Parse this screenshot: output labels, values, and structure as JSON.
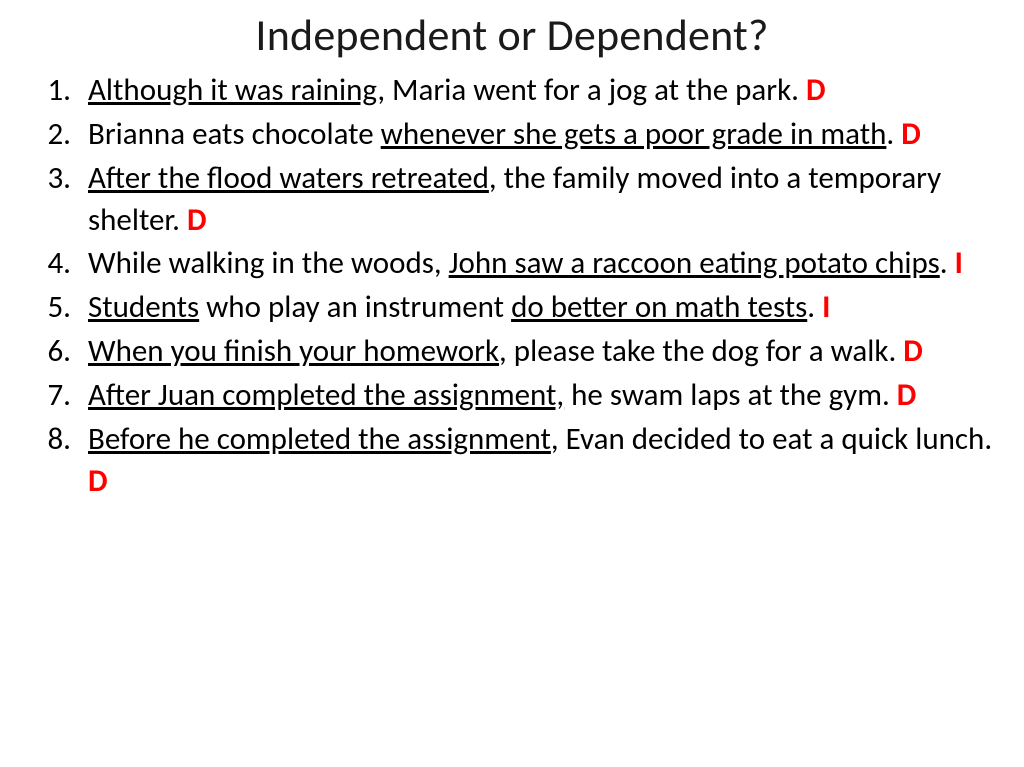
{
  "slide": {
    "title": "Independent or Dependent?",
    "title_fontsize": 44,
    "title_color": "#1a1a1a",
    "body_fontsize": 31,
    "body_color": "#000000",
    "answer_color": "#ff0000",
    "background_color": "#ffffff",
    "items": [
      {
        "number": "1",
        "segments": [
          {
            "text": "Although it was raining",
            "underline": true
          },
          {
            "text": ", Maria went for a jog at the park. ",
            "underline": false
          }
        ],
        "answer": "D"
      },
      {
        "number": "2",
        "segments": [
          {
            "text": "Brianna eats chocolate ",
            "underline": false
          },
          {
            "text": "whenever she gets a poor grade in math",
            "underline": true
          },
          {
            "text": ".   ",
            "underline": false
          }
        ],
        "answer": "D"
      },
      {
        "number": "3",
        "segments": [
          {
            "text": "After the flood waters retreated",
            "underline": true
          },
          {
            "text": ", the family moved into a temporary shelter.   ",
            "underline": false
          }
        ],
        "answer": "D"
      },
      {
        "number": "4",
        "segments": [
          {
            "text": "While walking in the woods, ",
            "underline": false
          },
          {
            "text": "John saw a raccoon eating potato chips",
            "underline": true
          },
          {
            "text": ".    ",
            "underline": false
          }
        ],
        "answer": "I"
      },
      {
        "number": "5",
        "segments": [
          {
            "text": "Students",
            "underline": true
          },
          {
            "text": " who play an instrument  ",
            "underline": false
          },
          {
            "text": "do better on math tests",
            "underline": true
          },
          {
            "text": ".   ",
            "underline": false
          }
        ],
        "answer": "I"
      },
      {
        "number": "6",
        "segments": [
          {
            "text": "When you finish your homework",
            "underline": true
          },
          {
            "text": ", please take the dog for a walk. ",
            "underline": false
          }
        ],
        "answer": "D"
      },
      {
        "number": "7",
        "segments": [
          {
            "text": "After Juan completed the assignment,",
            "underline": true
          },
          {
            "text": " he swam laps at the gym.   ",
            "underline": false
          }
        ],
        "answer": "D"
      },
      {
        "number": "8",
        "segments": [
          {
            "text": "Before he completed the assignment",
            "underline": true
          },
          {
            "text": ", Evan decided to eat a quick lunch.   ",
            "underline": false
          }
        ],
        "answer": "D"
      }
    ]
  }
}
